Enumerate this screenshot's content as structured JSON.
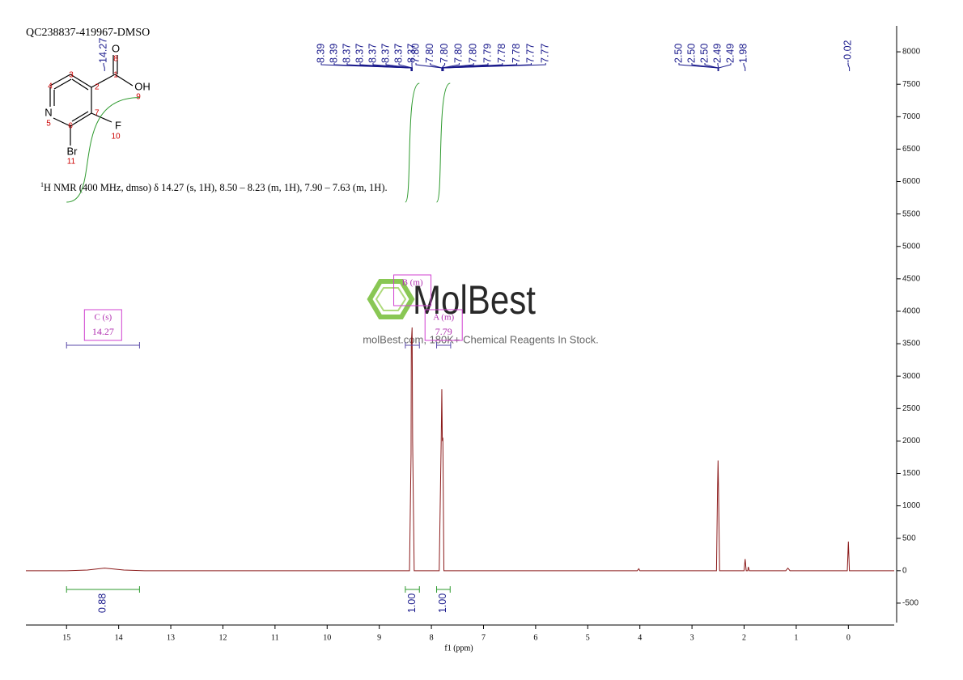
{
  "chart_data": {
    "type": "line",
    "title": "QC238837-419967-DMSO",
    "xlabel": "f1 (ppm)",
    "annotation": {
      "sup": "1",
      "text": "H NMR (400 MHz, dmso) δ 14.27 (s, 1H), 8.50 – 8.23 (m, 1H), 7.90 – 7.63 (m, 1H)."
    },
    "xlim": [
      15.78,
      -0.88
    ],
    "xticks": [
      15,
      14,
      13,
      12,
      11,
      10,
      9,
      8,
      7,
      6,
      5,
      4,
      3,
      2,
      1,
      0
    ],
    "ylim": [
      -800,
      8400
    ],
    "yticks": [
      -500,
      0,
      500,
      1000,
      1500,
      2000,
      2500,
      3000,
      3500,
      4000,
      4500,
      5000,
      5500,
      6000,
      6500,
      7000,
      7500,
      8000
    ],
    "series": [
      {
        "color": "#8b1a1a",
        "x": [
          15.78,
          15.0,
          14.6,
          14.27,
          13.9,
          13.5,
          8.6,
          8.42,
          8.39,
          8.385,
          8.37,
          8.36,
          8.33,
          7.85,
          7.81,
          7.8,
          7.79,
          7.78,
          7.76,
          4.05,
          4.02,
          4.0,
          2.53,
          2.51,
          2.5,
          2.49,
          2.47,
          2.0,
          1.98,
          1.96,
          1.93,
          1.92,
          1.9,
          1.2,
          1.16,
          1.12,
          0.02,
          0,
          -0.02,
          -0.88
        ],
        "values": [
          0,
          0,
          10,
          40,
          10,
          0,
          0,
          0,
          1800,
          3500,
          3750,
          2000,
          0,
          0,
          2100,
          2800,
          2000,
          2050,
          0,
          0,
          30,
          0,
          0,
          1250,
          1700,
          1200,
          0,
          0,
          180,
          0,
          0,
          60,
          0,
          0,
          40,
          0,
          0,
          450,
          0,
          0
        ]
      }
    ],
    "peak_labels": [
      {
        "values": [
          14.27
        ],
        "value_labels": [
          "14.27"
        ]
      },
      {
        "values": [
          8.39,
          8.39,
          8.37,
          8.37,
          8.37,
          8.37,
          8.37,
          8.37
        ],
        "value_labels": [
          "8.39",
          "8.39",
          "8.37",
          "8.37",
          "8.37",
          "8.37",
          "8.37",
          "8.37"
        ]
      },
      {
        "values": [
          7.8,
          7.8,
          7.8,
          7.8,
          7.8,
          7.79,
          7.78,
          7.78,
          7.77,
          7.77
        ],
        "value_labels": [
          "7.80",
          "7.80",
          "7.80",
          "7.80",
          "7.80",
          "7.79",
          "7.78",
          "7.78",
          "7.77",
          "7.77"
        ]
      },
      {
        "values": [
          2.5,
          2.5,
          2.5,
          2.49,
          2.49
        ],
        "value_labels": [
          "2.50",
          "2.50",
          "2.50",
          "2.49",
          "2.49"
        ]
      },
      {
        "values": [
          1.98
        ],
        "value_labels": [
          "1.98"
        ]
      },
      {
        "values": [
          -0.02
        ],
        "value_labels": [
          "-0.02"
        ]
      }
    ],
    "integrals": {
      "ranges": [
        [
          15.0,
          13.6
        ],
        [
          8.5,
          8.23
        ],
        [
          7.9,
          7.64
        ]
      ],
      "values": [
        0.88,
        1,
        1
      ],
      "value_labels": [
        "0.88",
        "1.00",
        "1.00"
      ]
    },
    "multiplets": [
      {
        "label": "C (s)",
        "shift": 14.27,
        "range": [
          15.0,
          13.6
        ]
      },
      {
        "label": "B (m)",
        "range": [
          8.5,
          8.23
        ]
      },
      {
        "label": "A (m)",
        "shift": 7.79,
        "range": [
          7.9,
          7.63
        ]
      }
    ]
  },
  "structure": {
    "atoms": [
      "O",
      "OH",
      "N",
      "F",
      "Br"
    ],
    "numbers": [
      "1",
      "2",
      "3",
      "4",
      "5",
      "6",
      "7",
      "8",
      "9",
      "10",
      "11"
    ]
  },
  "watermark": {
    "brand": "MolBest",
    "tagline": "molBest.com, 180K+ Chemical Reagents In Stock."
  }
}
